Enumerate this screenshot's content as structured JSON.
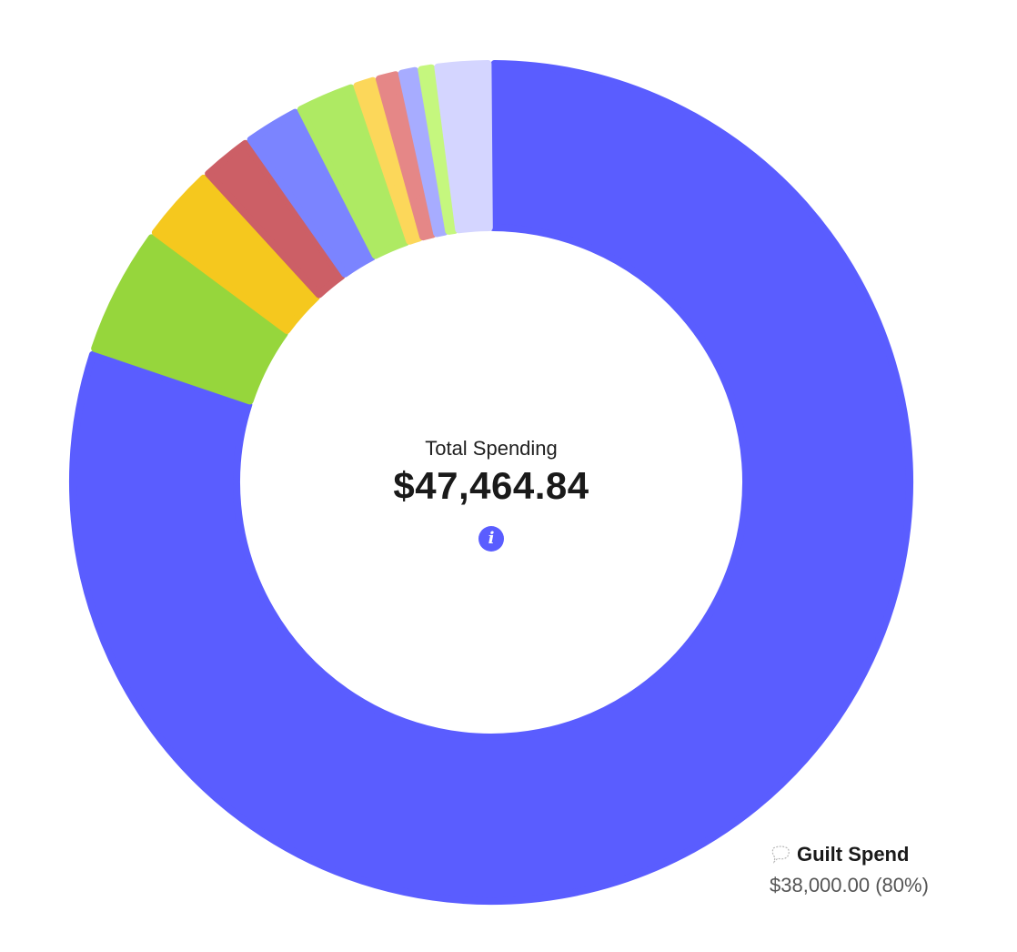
{
  "center": {
    "label": "Total Spending",
    "total": "$47,464.84"
  },
  "info_icon": "info-icon",
  "callout": {
    "name": "Guilt Spend",
    "value": "$38,000.00 (80%)",
    "icon": "speech-bubble-icon"
  },
  "chart_data": {
    "type": "pie",
    "variant": "donut",
    "total": 47464.84,
    "slices": [
      {
        "value": 38000.0,
        "color": "#5a5dff"
      },
      {
        "value": 2370,
        "color": "#96d63c"
      },
      {
        "value": 1430,
        "color": "#f5c81e"
      },
      {
        "value": 980,
        "color": "#cc5f66"
      },
      {
        "value": 1060,
        "color": "#7b84ff"
      },
      {
        "value": 1100,
        "color": "#aeea63"
      },
      {
        "value": 420,
        "color": "#fcd75a"
      },
      {
        "value": 420,
        "color": "#e58787"
      },
      {
        "value": 360,
        "color": "#a7acff"
      },
      {
        "value": 300,
        "color": "#c5f77e"
      },
      {
        "value": 1024.84,
        "color": "#d4d5ff"
      }
    ]
  }
}
